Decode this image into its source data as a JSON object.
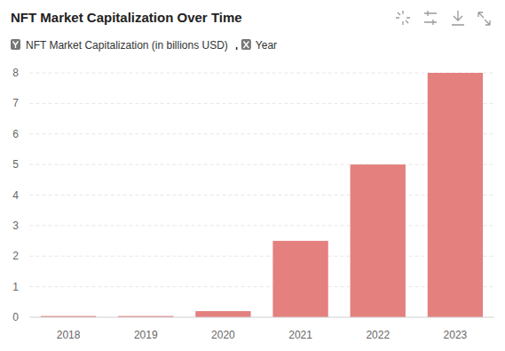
{
  "chart_data": {
    "type": "bar",
    "title": "NFT Market Capitalization Over Time",
    "y_label": "NFT Market Capitalization (in billions USD)",
    "x_label": "Year",
    "categories": [
      "2018",
      "2019",
      "2020",
      "2021",
      "2022",
      "2023"
    ],
    "values": [
      0.04,
      0.04,
      0.2,
      2.5,
      5,
      8
    ],
    "color": "#e4807e",
    "ylim": [
      0,
      8
    ],
    "yticks": [
      0,
      1,
      2,
      3,
      4,
      5,
      6,
      7,
      8
    ],
    "grid": true
  }
}
